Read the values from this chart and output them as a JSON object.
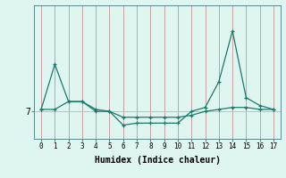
{
  "x": [
    0,
    1,
    2,
    3,
    4,
    5,
    6,
    7,
    8,
    9,
    10,
    11,
    12,
    13,
    14,
    15,
    16,
    17
  ],
  "line1": [
    7.05,
    8.2,
    7.25,
    7.25,
    7.05,
    7.0,
    6.65,
    6.7,
    6.7,
    6.7,
    6.7,
    7.0,
    7.1,
    7.75,
    9.05,
    7.35,
    7.15,
    7.05
  ],
  "line2": [
    7.05,
    7.05,
    7.25,
    7.25,
    7.0,
    7.0,
    6.85,
    6.85,
    6.85,
    6.85,
    6.85,
    6.9,
    7.0,
    7.05,
    7.1,
    7.1,
    7.05,
    7.05
  ],
  "line_color": "#1a7a6a",
  "bg_color": "#dff5f0",
  "grid_color_v": "#c8a0a0",
  "grid_color_h": "#b0c8c8",
  "xlabel": "Humidex (Indice chaleur)",
  "ylabel": "7",
  "xlim": [
    -0.5,
    17.5
  ],
  "ylim": [
    6.3,
    9.7
  ],
  "yticks": [
    7
  ],
  "xticks": [
    0,
    1,
    2,
    3,
    4,
    5,
    6,
    7,
    8,
    9,
    10,
    11,
    12,
    13,
    14,
    15,
    16,
    17
  ]
}
